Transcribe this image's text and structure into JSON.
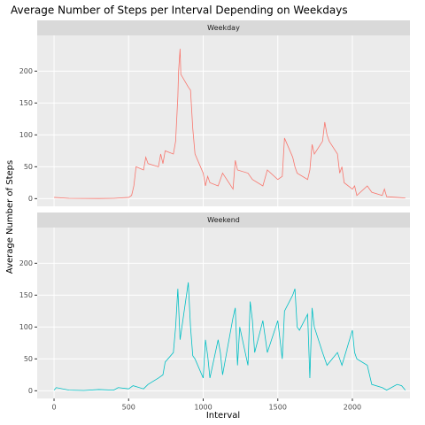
{
  "chart_data": {
    "type": "line",
    "title": "Average Number of Steps per Interval Depending on Weekdays",
    "xlabel": "Interval",
    "ylabel": "Average Number of Steps",
    "xlim": [
      -113,
      2386
    ],
    "ylim": [
      -12,
      256
    ],
    "xticks": [
      0,
      500,
      1000,
      1500,
      2000
    ],
    "yticks": [
      0,
      50,
      100,
      150,
      200
    ],
    "grid": true,
    "panels": [
      {
        "name": "Weekday",
        "color": "#f8766d",
        "x": [
          0,
          100,
          200,
          300,
          400,
          500,
          520,
          535,
          550,
          600,
          615,
          630,
          700,
          715,
          730,
          745,
          800,
          815,
          830,
          835,
          845,
          850,
          900,
          915,
          930,
          945,
          1000,
          1015,
          1030,
          1045,
          1100,
          1130,
          1200,
          1215,
          1230,
          1300,
          1330,
          1400,
          1430,
          1500,
          1530,
          1545,
          1600,
          1615,
          1630,
          1700,
          1715,
          1730,
          1745,
          1800,
          1815,
          1830,
          1845,
          1900,
          1915,
          1930,
          1945,
          2000,
          2015,
          2030,
          2100,
          2130,
          2200,
          2215,
          2230,
          2300,
          2355
        ],
        "values": [
          2,
          0.5,
          0.3,
          0.2,
          0.5,
          2,
          5,
          20,
          50,
          45,
          65,
          55,
          50,
          70,
          55,
          75,
          70,
          90,
          160,
          200,
          235,
          195,
          175,
          170,
          110,
          70,
          40,
          20,
          35,
          25,
          20,
          40,
          15,
          60,
          45,
          40,
          30,
          20,
          45,
          30,
          35,
          95,
          65,
          50,
          40,
          30,
          45,
          85,
          70,
          90,
          120,
          100,
          90,
          70,
          40,
          50,
          25,
          15,
          20,
          5,
          20,
          10,
          5,
          15,
          3,
          2,
          1
        ]
      },
      {
        "name": "Weekend",
        "color": "#00bfc4",
        "x": [
          0,
          15,
          100,
          200,
          300,
          400,
          430,
          500,
          530,
          600,
          630,
          700,
          730,
          745,
          800,
          815,
          830,
          845,
          900,
          915,
          930,
          945,
          1000,
          1015,
          1030,
          1045,
          1100,
          1115,
          1130,
          1200,
          1215,
          1230,
          1245,
          1300,
          1315,
          1330,
          1345,
          1400,
          1430,
          1500,
          1530,
          1545,
          1600,
          1615,
          1630,
          1645,
          1700,
          1715,
          1730,
          1745,
          1800,
          1830,
          1900,
          1930,
          2000,
          2015,
          2030,
          2100,
          2130,
          2200,
          2230,
          2300,
          2330,
          2355
        ],
        "values": [
          1,
          5,
          1,
          0.5,
          2,
          1,
          5,
          3,
          8,
          3,
          10,
          20,
          25,
          45,
          60,
          100,
          160,
          80,
          170,
          100,
          55,
          50,
          20,
          80,
          55,
          20,
          80,
          60,
          25,
          115,
          130,
          40,
          100,
          40,
          140,
          110,
          60,
          110,
          60,
          110,
          50,
          125,
          150,
          160,
          100,
          95,
          120,
          20,
          130,
          100,
          60,
          40,
          60,
          40,
          95,
          60,
          50,
          40,
          10,
          5,
          1,
          10,
          8,
          1
        ]
      }
    ]
  }
}
